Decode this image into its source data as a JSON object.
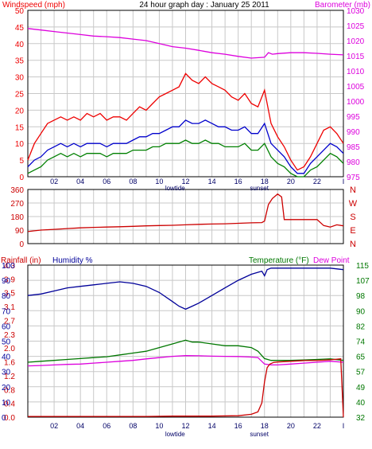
{
  "colors": {
    "wind_avg": "#0000cc",
    "wind_gust": "#ee0000",
    "wind_min": "#008000",
    "barometer": "#dd00dd",
    "wind_dir": "#cc0000",
    "humidity": "#000099",
    "rainfall": "#cc0000",
    "temperature": "#007700",
    "dew_point": "#dd00dd",
    "grid": "#c8c8c8",
    "frame": "#000000"
  },
  "chart_data": [
    {
      "type": "line",
      "title": "24 hour graph day : January 25 2011",
      "ylabel_left": "Windspeed (mph)",
      "ylabel_right": "Barometer (mb)",
      "ylim_left": [
        0,
        50
      ],
      "ylim_right": [
        975,
        1030
      ],
      "yticks_left": [
        "50",
        "45",
        "40",
        "35",
        "30",
        "25",
        "20",
        "15",
        "10",
        "5",
        "0"
      ],
      "yticks_right": [
        "1030",
        "1025",
        "1020",
        "1015",
        "1010",
        "1005",
        "1000",
        "995",
        "990",
        "985",
        "980",
        "975"
      ],
      "xlim": [
        0,
        24
      ],
      "xticks": [
        "02",
        "04",
        "06",
        "08",
        "10",
        "12",
        "14",
        "16",
        "18",
        "20",
        "22",
        "I"
      ],
      "markers": [
        {
          "label": "lowtide",
          "x": 11.2
        },
        {
          "label": "sunset",
          "x": 17.6
        }
      ],
      "series": [
        {
          "name": "gust",
          "color_key": "wind_gust",
          "axis": "left",
          "x": [
            0,
            0.5,
            1,
            1.5,
            2,
            2.5,
            3,
            3.5,
            4,
            4.5,
            5,
            5.5,
            6,
            6.5,
            7,
            7.5,
            8,
            8.5,
            9,
            9.5,
            10,
            10.5,
            11,
            11.5,
            12,
            12.5,
            13,
            13.5,
            14,
            14.5,
            15,
            15.5,
            16,
            16.5,
            17,
            17.5,
            18,
            18.5,
            19,
            19.5,
            20,
            20.5,
            21,
            21.5,
            22,
            22.5,
            23,
            23.5,
            24
          ],
          "values": [
            5,
            10,
            13,
            16,
            17,
            18,
            17,
            18,
            17,
            19,
            18,
            19,
            17,
            18,
            18,
            17,
            19,
            21,
            20,
            22,
            24,
            25,
            26,
            27,
            31,
            29,
            28,
            30,
            28,
            27,
            26,
            24,
            23,
            25,
            22,
            21,
            26,
            16,
            12,
            9,
            5,
            2,
            3,
            6,
            10,
            14,
            15,
            13,
            10
          ]
        },
        {
          "name": "average",
          "color_key": "wind_avg",
          "axis": "left",
          "x": [
            0,
            0.5,
            1,
            1.5,
            2,
            2.5,
            3,
            3.5,
            4,
            4.5,
            5,
            5.5,
            6,
            6.5,
            7,
            7.5,
            8,
            8.5,
            9,
            9.5,
            10,
            10.5,
            11,
            11.5,
            12,
            12.5,
            13,
            13.5,
            14,
            14.5,
            15,
            15.5,
            16,
            16.5,
            17,
            17.5,
            18,
            18.5,
            19,
            19.5,
            20,
            20.5,
            21,
            21.5,
            22,
            22.5,
            23,
            23.5,
            24
          ],
          "values": [
            3,
            5,
            6,
            8,
            9,
            10,
            9,
            10,
            9,
            10,
            10,
            10,
            9,
            10,
            10,
            10,
            11,
            12,
            12,
            13,
            13,
            14,
            15,
            15,
            17,
            16,
            16,
            17,
            16,
            15,
            15,
            14,
            14,
            15,
            13,
            13,
            16,
            10,
            8,
            6,
            3,
            1,
            1,
            4,
            6,
            8,
            10,
            9,
            7
          ]
        },
        {
          "name": "minimum",
          "color_key": "wind_min",
          "axis": "left",
          "x": [
            0,
            0.5,
            1,
            1.5,
            2,
            2.5,
            3,
            3.5,
            4,
            4.5,
            5,
            5.5,
            6,
            6.5,
            7,
            7.5,
            8,
            8.5,
            9,
            9.5,
            10,
            10.5,
            11,
            11.5,
            12,
            12.5,
            13,
            13.5,
            14,
            14.5,
            15,
            15.5,
            16,
            16.5,
            17,
            17.5,
            18,
            18.5,
            19,
            19.5,
            20,
            20.5,
            21,
            21.5,
            22,
            22.5,
            23,
            23.5,
            24
          ],
          "values": [
            1,
            2,
            3,
            5,
            6,
            7,
            6,
            7,
            6,
            7,
            7,
            7,
            6,
            7,
            7,
            7,
            8,
            8,
            8,
            9,
            9,
            10,
            10,
            10,
            11,
            10,
            10,
            11,
            10,
            10,
            9,
            9,
            9,
            10,
            8,
            8,
            10,
            6,
            4,
            3,
            1,
            0,
            0,
            2,
            3,
            5,
            7,
            6,
            4
          ]
        },
        {
          "name": "barometer",
          "color_key": "barometer",
          "axis": "right",
          "x": [
            0,
            1,
            2,
            3,
            4,
            5,
            6,
            7,
            8,
            9,
            10,
            11,
            12,
            13,
            14,
            15,
            16,
            17,
            18,
            18.3,
            18.6,
            19,
            20,
            21,
            22,
            23,
            24
          ],
          "values": [
            1024,
            1023.5,
            1023,
            1022.5,
            1022,
            1021.5,
            1021.3,
            1021,
            1020.5,
            1020,
            1019,
            1018,
            1017.5,
            1016.8,
            1016,
            1015.5,
            1014.8,
            1014.2,
            1014.5,
            1016,
            1015.5,
            1015.7,
            1016,
            1016,
            1015.8,
            1015.5,
            1015.3
          ]
        }
      ]
    },
    {
      "type": "line",
      "ylabel_right": "N W S E N",
      "ylim": [
        0,
        360
      ],
      "yticks_left": [
        "360",
        "270",
        "180",
        "90",
        "0"
      ],
      "xlim": [
        0,
        24
      ],
      "series": [
        {
          "name": "wind direction",
          "color_key": "wind_dir",
          "x": [
            0,
            0.5,
            1,
            2,
            3,
            4,
            5,
            6,
            7,
            8,
            9,
            10,
            11,
            12,
            13,
            14,
            15,
            16,
            17,
            17.8,
            18,
            18.3,
            18.6,
            19,
            19.3,
            19.5,
            20,
            21,
            22,
            22.5,
            23,
            23.5,
            24
          ],
          "values": [
            80,
            85,
            90,
            95,
            100,
            105,
            108,
            110,
            112,
            115,
            118,
            120,
            122,
            125,
            128,
            130,
            132,
            135,
            138,
            140,
            150,
            260,
            300,
            330,
            310,
            160,
            160,
            160,
            160,
            120,
            110,
            125,
            118
          ]
        }
      ]
    },
    {
      "type": "line",
      "ylabel_left_1": "Rainfall (in)",
      "ylabel_left_2": "Humidity %",
      "ylabel_right_1": "Temperature (°F)",
      "ylabel_right_2": "Dew Point",
      "rain_ticks": [
        "4.3",
        "3.9",
        "3.5",
        "3.1",
        "2.7",
        "2.3",
        "2.0",
        "1.6",
        "1.2",
        "0.8",
        "0.4",
        "0.0"
      ],
      "humidity_ticks": [
        "100",
        "90",
        "80",
        "70",
        "60",
        "50",
        "40",
        "30",
        "20",
        "10",
        "0"
      ],
      "temp_ticks": [
        "115",
        "107",
        "98",
        "90",
        "82",
        "74",
        "65",
        "57",
        "49",
        "40",
        "32"
      ],
      "ylim_rain": [
        0,
        4.3
      ],
      "ylim_humidity": [
        0,
        100
      ],
      "ylim_temp": [
        32,
        115
      ],
      "xlim": [
        0,
        24
      ],
      "xticks": [
        "02",
        "04",
        "06",
        "08",
        "10",
        "12",
        "14",
        "16",
        "18",
        "20",
        "22",
        "I"
      ],
      "markers": [
        {
          "label": "lowtide",
          "x": 11.2
        },
        {
          "label": "sunset",
          "x": 17.6
        }
      ],
      "series": [
        {
          "name": "humidity",
          "color_key": "humidity",
          "axis": "humidity",
          "x": [
            0,
            1,
            2,
            3,
            4,
            5,
            6,
            7,
            8,
            9,
            10,
            11,
            11.5,
            12,
            12.5,
            13,
            14,
            15,
            16,
            17,
            17.8,
            18,
            18.2,
            18.5,
            19,
            20,
            21,
            22,
            23,
            24
          ],
          "values": [
            80,
            81,
            83,
            85,
            86,
            87,
            88,
            89,
            88,
            86,
            82,
            76,
            73,
            71,
            73,
            75,
            80,
            85,
            90,
            94,
            96,
            93,
            97,
            98,
            98,
            98,
            98,
            98,
            98,
            97
          ]
        },
        {
          "name": "temperature",
          "color_key": "temperature",
          "axis": "temp",
          "x": [
            0,
            1,
            2,
            3,
            4,
            5,
            6,
            7,
            8,
            9,
            10,
            11,
            12,
            12.5,
            13,
            14,
            15,
            16,
            17,
            17.5,
            18,
            18.5,
            19,
            20,
            21,
            22,
            23,
            24
          ],
          "values": [
            62,
            62.5,
            63,
            63.5,
            64,
            64.5,
            65,
            66,
            67,
            68,
            70,
            72,
            74,
            73,
            73,
            72,
            71,
            71,
            70,
            68,
            64,
            63,
            63,
            63,
            63.2,
            63.5,
            63.8,
            63
          ]
        },
        {
          "name": "dew point",
          "color_key": "dew_point",
          "axis": "temp",
          "x": [
            0,
            1,
            2,
            3,
            4,
            5,
            6,
            7,
            8,
            9,
            10,
            11,
            12,
            13,
            14,
            15,
            16,
            17,
            17.5,
            18,
            18.5,
            19,
            20,
            21,
            22,
            23,
            24
          ],
          "values": [
            60,
            60.2,
            60.5,
            60.8,
            61,
            61.5,
            62,
            62.5,
            63,
            63.8,
            64.5,
            65.2,
            65.6,
            65.5,
            65.3,
            65.2,
            65.1,
            64.8,
            64.5,
            61,
            60.5,
            60.5,
            61,
            61.5,
            62,
            62.5,
            62
          ]
        },
        {
          "name": "rainfall",
          "color_key": "rainfall",
          "axis": "rain",
          "x": [
            0,
            5,
            9,
            11,
            14,
            16,
            17,
            17.5,
            17.8,
            18,
            18.2,
            18.4,
            18.7,
            19,
            20,
            21,
            22,
            23,
            23.8,
            24
          ],
          "values": [
            0.02,
            0.02,
            0.02,
            0.03,
            0.03,
            0.04,
            0.08,
            0.15,
            0.4,
            1.0,
            1.4,
            1.5,
            1.55,
            1.56,
            1.58,
            1.6,
            1.6,
            1.62,
            1.65,
            0.0
          ]
        }
      ]
    }
  ]
}
